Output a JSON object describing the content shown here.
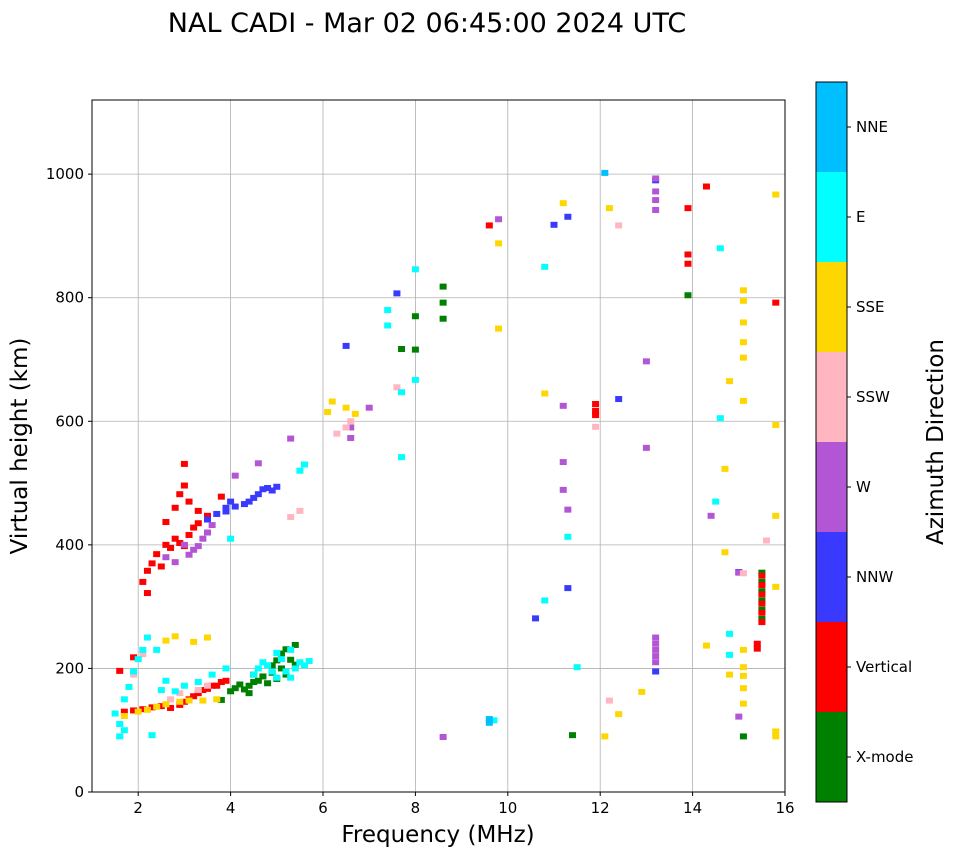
{
  "chart_data": {
    "type": "scatter",
    "title": "NAL CADI - Mar 02 06:45:00 2024 UTC",
    "xlabel": "Frequency (MHz)",
    "ylabel": "Virtual height (km)",
    "xlim": [
      1,
      16
    ],
    "ylim": [
      0,
      1120
    ],
    "xticks": [
      2,
      4,
      6,
      8,
      10,
      12,
      14,
      16
    ],
    "yticks": [
      0,
      200,
      400,
      600,
      800,
      1000
    ],
    "grid": true,
    "colorbar": {
      "label": "Azimuth Direction",
      "categories": [
        "X-mode",
        "Vertical",
        "NNW",
        "W",
        "SSW",
        "SSE",
        "E",
        "NNE"
      ],
      "colors": [
        "#008000",
        "#ff0000",
        "#3a3aff",
        "#b356d6",
        "#ffb6c1",
        "#ffd700",
        "#00ffff",
        "#00bfff"
      ]
    },
    "series": [
      {
        "name": "X-mode",
        "points": [
          [
            4.0,
            163
          ],
          [
            4.1,
            168
          ],
          [
            4.2,
            174
          ],
          [
            4.3,
            166
          ],
          [
            4.4,
            172
          ],
          [
            4.5,
            178
          ],
          [
            4.5,
            190
          ],
          [
            4.6,
            180
          ],
          [
            4.7,
            187
          ],
          [
            4.8,
            176
          ],
          [
            4.9,
            193
          ],
          [
            4.9,
            205
          ],
          [
            5.0,
            183
          ],
          [
            5.0,
            213
          ],
          [
            5.1,
            200
          ],
          [
            5.1,
            224
          ],
          [
            5.2,
            190
          ],
          [
            5.2,
            231
          ],
          [
            5.3,
            214
          ],
          [
            5.4,
            206
          ],
          [
            5.4,
            238
          ],
          [
            3.8,
            149
          ],
          [
            4.4,
            160
          ],
          [
            8.6,
            818
          ],
          [
            8.6,
            792
          ],
          [
            8.6,
            766
          ],
          [
            8.0,
            770
          ],
          [
            8.0,
            716
          ],
          [
            7.7,
            717
          ],
          [
            13.9,
            804
          ],
          [
            11.4,
            92
          ],
          [
            15.1,
            90
          ],
          [
            15.5,
            355
          ],
          [
            15.5,
            340
          ],
          [
            15.5,
            325
          ],
          [
            15.5,
            310
          ],
          [
            15.5,
            295
          ],
          [
            15.5,
            280
          ]
        ]
      },
      {
        "name": "Vertical",
        "points": [
          [
            1.7,
            130
          ],
          [
            1.9,
            132
          ],
          [
            2.1,
            134
          ],
          [
            2.3,
            137
          ],
          [
            2.5,
            139
          ],
          [
            2.7,
            136
          ],
          [
            2.9,
            141
          ],
          [
            3.1,
            150
          ],
          [
            3.3,
            160
          ],
          [
            3.5,
            167
          ],
          [
            3.7,
            172
          ],
          [
            3.9,
            180
          ],
          [
            3.0,
            146
          ],
          [
            3.2,
            155
          ],
          [
            3.4,
            165
          ],
          [
            3.6,
            172
          ],
          [
            3.8,
            178
          ],
          [
            2.1,
            340
          ],
          [
            2.2,
            322
          ],
          [
            2.2,
            358
          ],
          [
            2.3,
            370
          ],
          [
            2.4,
            385
          ],
          [
            2.5,
            365
          ],
          [
            2.6,
            400
          ],
          [
            2.7,
            395
          ],
          [
            2.8,
            410
          ],
          [
            2.9,
            403
          ],
          [
            3.0,
            398
          ],
          [
            3.1,
            416
          ],
          [
            3.2,
            428
          ],
          [
            3.3,
            435
          ],
          [
            2.6,
            437
          ],
          [
            2.8,
            460
          ],
          [
            2.9,
            482
          ],
          [
            3.0,
            496
          ],
          [
            3.0,
            531
          ],
          [
            3.1,
            470
          ],
          [
            3.3,
            455
          ],
          [
            3.5,
            447
          ],
          [
            3.8,
            478
          ],
          [
            1.6,
            196
          ],
          [
            1.9,
            218
          ],
          [
            9.6,
            917
          ],
          [
            11.9,
            628
          ],
          [
            11.9,
            617
          ],
          [
            11.9,
            610
          ],
          [
            13.9,
            945
          ],
          [
            13.9,
            870
          ],
          [
            13.9,
            855
          ],
          [
            14.3,
            980
          ],
          [
            15.8,
            792
          ],
          [
            15.4,
            240
          ],
          [
            15.4,
            232
          ],
          [
            15.5,
            350
          ],
          [
            15.5,
            335
          ],
          [
            15.5,
            320
          ],
          [
            15.5,
            305
          ],
          [
            15.5,
            290
          ],
          [
            15.5,
            275
          ]
        ]
      },
      {
        "name": "NNW",
        "points": [
          [
            3.9,
            460
          ],
          [
            4.1,
            462
          ],
          [
            4.3,
            466
          ],
          [
            4.4,
            470
          ],
          [
            4.5,
            476
          ],
          [
            4.6,
            482
          ],
          [
            4.7,
            490
          ],
          [
            4.8,
            492
          ],
          [
            4.9,
            488
          ],
          [
            5.0,
            494
          ],
          [
            3.7,
            450
          ],
          [
            3.5,
            441
          ],
          [
            4.0,
            470
          ],
          [
            3.9,
            454
          ],
          [
            11.0,
            918
          ],
          [
            11.3,
            931
          ],
          [
            11.3,
            330
          ],
          [
            12.4,
            636
          ],
          [
            10.6,
            281
          ],
          [
            7.6,
            807
          ],
          [
            13.2,
            990
          ],
          [
            13.2,
            195
          ],
          [
            15.0,
            356
          ],
          [
            6.5,
            722
          ]
        ]
      },
      {
        "name": "W",
        "points": [
          [
            3.1,
            384
          ],
          [
            3.2,
            392
          ],
          [
            3.3,
            398
          ],
          [
            3.4,
            410
          ],
          [
            3.5,
            420
          ],
          [
            3.6,
            432
          ],
          [
            2.6,
            380
          ],
          [
            2.8,
            372
          ],
          [
            3.0,
            400
          ],
          [
            4.1,
            512
          ],
          [
            4.6,
            532
          ],
          [
            5.3,
            572
          ],
          [
            6.6,
            590
          ],
          [
            6.6,
            573
          ],
          [
            13.2,
            993
          ],
          [
            13.2,
            972
          ],
          [
            13.2,
            958
          ],
          [
            13.2,
            942
          ],
          [
            13.0,
            697
          ],
          [
            13.0,
            557
          ],
          [
            11.2,
            534
          ],
          [
            11.2,
            489
          ],
          [
            11.3,
            457
          ],
          [
            11.2,
            625
          ],
          [
            13.2,
            250
          ],
          [
            13.2,
            240
          ],
          [
            13.2,
            230
          ],
          [
            13.2,
            220
          ],
          [
            13.2,
            210
          ],
          [
            14.4,
            447
          ],
          [
            15.0,
            122
          ],
          [
            8.6,
            89
          ],
          [
            9.8,
            927
          ],
          [
            15.0,
            355
          ],
          [
            7.0,
            622
          ]
        ]
      },
      {
        "name": "SSW",
        "points": [
          [
            3.3,
            165
          ],
          [
            3.5,
            172
          ],
          [
            2.7,
            150
          ],
          [
            2.9,
            160
          ],
          [
            5.3,
            445
          ],
          [
            5.5,
            455
          ],
          [
            6.3,
            580
          ],
          [
            6.6,
            600
          ],
          [
            6.5,
            590
          ],
          [
            12.4,
            917
          ],
          [
            11.9,
            591
          ],
          [
            7.6,
            655
          ],
          [
            15.1,
            354
          ],
          [
            15.6,
            407
          ],
          [
            12.2,
            148
          ],
          [
            2.1,
            223
          ],
          [
            1.9,
            190
          ]
        ]
      },
      {
        "name": "SSE",
        "points": [
          [
            1.7,
            123
          ],
          [
            2.0,
            130
          ],
          [
            2.2,
            133
          ],
          [
            2.4,
            138
          ],
          [
            2.6,
            142
          ],
          [
            2.9,
            146
          ],
          [
            3.1,
            148
          ],
          [
            3.4,
            148
          ],
          [
            3.7,
            150
          ],
          [
            2.6,
            245
          ],
          [
            2.8,
            252
          ],
          [
            3.2,
            243
          ],
          [
            3.5,
            250
          ],
          [
            6.1,
            615
          ],
          [
            6.2,
            632
          ],
          [
            6.5,
            622
          ],
          [
            6.7,
            612
          ],
          [
            9.8,
            888
          ],
          [
            9.8,
            750
          ],
          [
            11.2,
            953
          ],
          [
            12.2,
            945
          ],
          [
            12.4,
            126
          ],
          [
            12.1,
            90
          ],
          [
            12.9,
            162
          ],
          [
            14.3,
            237
          ],
          [
            14.7,
            523
          ],
          [
            14.7,
            388
          ],
          [
            14.8,
            665
          ],
          [
            15.1,
            812
          ],
          [
            15.1,
            795
          ],
          [
            15.1,
            760
          ],
          [
            15.1,
            728
          ],
          [
            15.1,
            703
          ],
          [
            15.1,
            633
          ],
          [
            15.1,
            230
          ],
          [
            15.1,
            202
          ],
          [
            15.1,
            188
          ],
          [
            15.1,
            168
          ],
          [
            15.1,
            143
          ],
          [
            15.8,
            967
          ],
          [
            15.8,
            594
          ],
          [
            15.8,
            447
          ],
          [
            15.8,
            332
          ],
          [
            15.8,
            98
          ],
          [
            15.8,
            90
          ],
          [
            10.8,
            645
          ],
          [
            14.8,
            190
          ]
        ]
      },
      {
        "name": "E",
        "points": [
          [
            1.5,
            127
          ],
          [
            1.6,
            110
          ],
          [
            1.7,
            100
          ],
          [
            1.6,
            90
          ],
          [
            1.7,
            150
          ],
          [
            1.8,
            170
          ],
          [
            1.9,
            195
          ],
          [
            2.0,
            215
          ],
          [
            2.1,
            230
          ],
          [
            2.2,
            250
          ],
          [
            2.5,
            165
          ],
          [
            2.6,
            180
          ],
          [
            2.4,
            230
          ],
          [
            2.3,
            92
          ],
          [
            2.8,
            163
          ],
          [
            3.0,
            172
          ],
          [
            3.3,
            178
          ],
          [
            3.6,
            190
          ],
          [
            3.9,
            200
          ],
          [
            4.0,
            410
          ],
          [
            4.5,
            190
          ],
          [
            4.6,
            200
          ],
          [
            4.7,
            210
          ],
          [
            4.8,
            205
          ],
          [
            4.9,
            195
          ],
          [
            5.0,
            185
          ],
          [
            5.1,
            215
          ],
          [
            5.2,
            195
          ],
          [
            5.3,
            185
          ],
          [
            5.4,
            200
          ],
          [
            5.5,
            210
          ],
          [
            5.6,
            205
          ],
          [
            5.7,
            212
          ],
          [
            5.0,
            225
          ],
          [
            5.3,
            230
          ],
          [
            5.5,
            520
          ],
          [
            5.6,
            530
          ],
          [
            7.4,
            780
          ],
          [
            7.4,
            755
          ],
          [
            7.7,
            647
          ],
          [
            7.7,
            542
          ],
          [
            8.0,
            846
          ],
          [
            8.0,
            667
          ],
          [
            10.8,
            850
          ],
          [
            11.3,
            413
          ],
          [
            11.5,
            202
          ],
          [
            10.8,
            310
          ],
          [
            14.6,
            880
          ],
          [
            14.6,
            605
          ],
          [
            14.8,
            256
          ],
          [
            14.8,
            222
          ],
          [
            9.7,
            116
          ],
          [
            14.5,
            470
          ]
        ]
      },
      {
        "name": "NNE",
        "points": [
          [
            9.6,
            112
          ],
          [
            9.6,
            118
          ],
          [
            12.1,
            1002
          ]
        ]
      }
    ]
  }
}
